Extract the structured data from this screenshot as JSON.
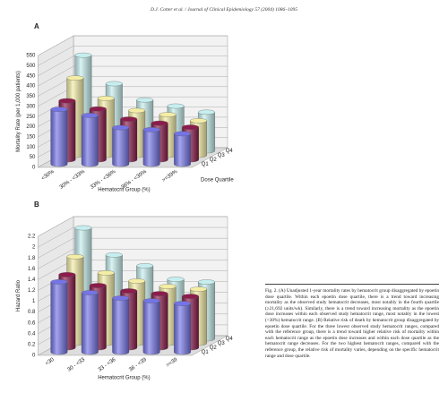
{
  "header": "D.J. Cotter et al. / Journal of Clinical Epidemiology 57 (2004) 1086–1095",
  "panel_labels": [
    "A",
    "B"
  ],
  "chart_data": [
    {
      "type": "bar3d",
      "y_label": "Mortality Rate (per 1,000 patients)",
      "x_label": "Hematocrit Group (%)",
      "depth_label": "Dose Quartile",
      "categories": [
        "<30%",
        "30% - <33%",
        "33% - <36%",
        "36% - <39%",
        ">=39%"
      ],
      "series": [
        {
          "name": "Q1",
          "color": "#7474e6",
          "values": [
            270,
            240,
            180,
            170,
            150
          ]
        },
        {
          "name": "Q2",
          "color": "#8c1c4c",
          "values": [
            290,
            250,
            200,
            180,
            160
          ]
        },
        {
          "name": "Q3",
          "color": "#f3eda6",
          "values": [
            380,
            280,
            220,
            200,
            170
          ]
        },
        {
          "name": "Q4",
          "color": "#c6eeee",
          "values": [
            470,
            330,
            250,
            220,
            190
          ]
        }
      ],
      "ylim": [
        0,
        550
      ],
      "yticks": [
        0,
        50,
        100,
        150,
        200,
        250,
        300,
        350,
        400,
        450,
        500,
        550
      ],
      "grid": true
    },
    {
      "type": "bar3d",
      "y_label": "Hazard Ratio",
      "x_label": "Hematocrit Group (%)",
      "categories": [
        "<30",
        "30 - <33",
        "33 - <36",
        "36 - <39",
        ">=39"
      ],
      "series": [
        {
          "name": "Q1",
          "color": "#7474e6",
          "values": [
            1.3,
            1.1,
            1.0,
            0.95,
            0.9
          ]
        },
        {
          "name": "Q2",
          "color": "#8c1c4c",
          "values": [
            1.35,
            1.15,
            1.05,
            1.0,
            0.95
          ]
        },
        {
          "name": "Q3",
          "color": "#f3eda6",
          "values": [
            1.6,
            1.3,
            1.15,
            1.05,
            1.0
          ]
        },
        {
          "name": "Q4",
          "color": "#c6eeee",
          "values": [
            2.05,
            1.55,
            1.35,
            1.1,
            1.05
          ]
        }
      ],
      "ylim": [
        0,
        2.2
      ],
      "yticks": [
        0,
        0.2,
        0.4,
        0.6,
        0.8,
        1,
        1.2,
        1.4,
        1.6,
        1.8,
        2,
        2.2
      ],
      "grid": true
    }
  ],
  "caption": "Fig. 2. (A) Unadjusted 1-year mortality rates by hematocrit group disaggregated by epoetin dose quartile. Within each epoetin dose quartile, there is a trend toward increasing mortality as the observed study hematocrit decreases, most notably in the fourth quartile (≥21,692 units/wk). Similarly, there is a trend toward increasing mortality as the epoetin dose increases within each observed study hematocrit range, most notably in the lowest (<30%) hematocrit range. (B) Relative risk of death by hematocrit group disaggregated by epoetin dose quartile. For the three lowest observed study hematocrit ranges, compared with the reference group, there is a trend toward higher relative risk of mortality within each hematocrit range as the epoetin dose increases and within each dose quartile as the hematocrit range decreases. For the two highest hematocrit ranges, compared with the reference group, the relative risk of mortality varies, depending on the specific hematocrit range and dose quartile."
}
